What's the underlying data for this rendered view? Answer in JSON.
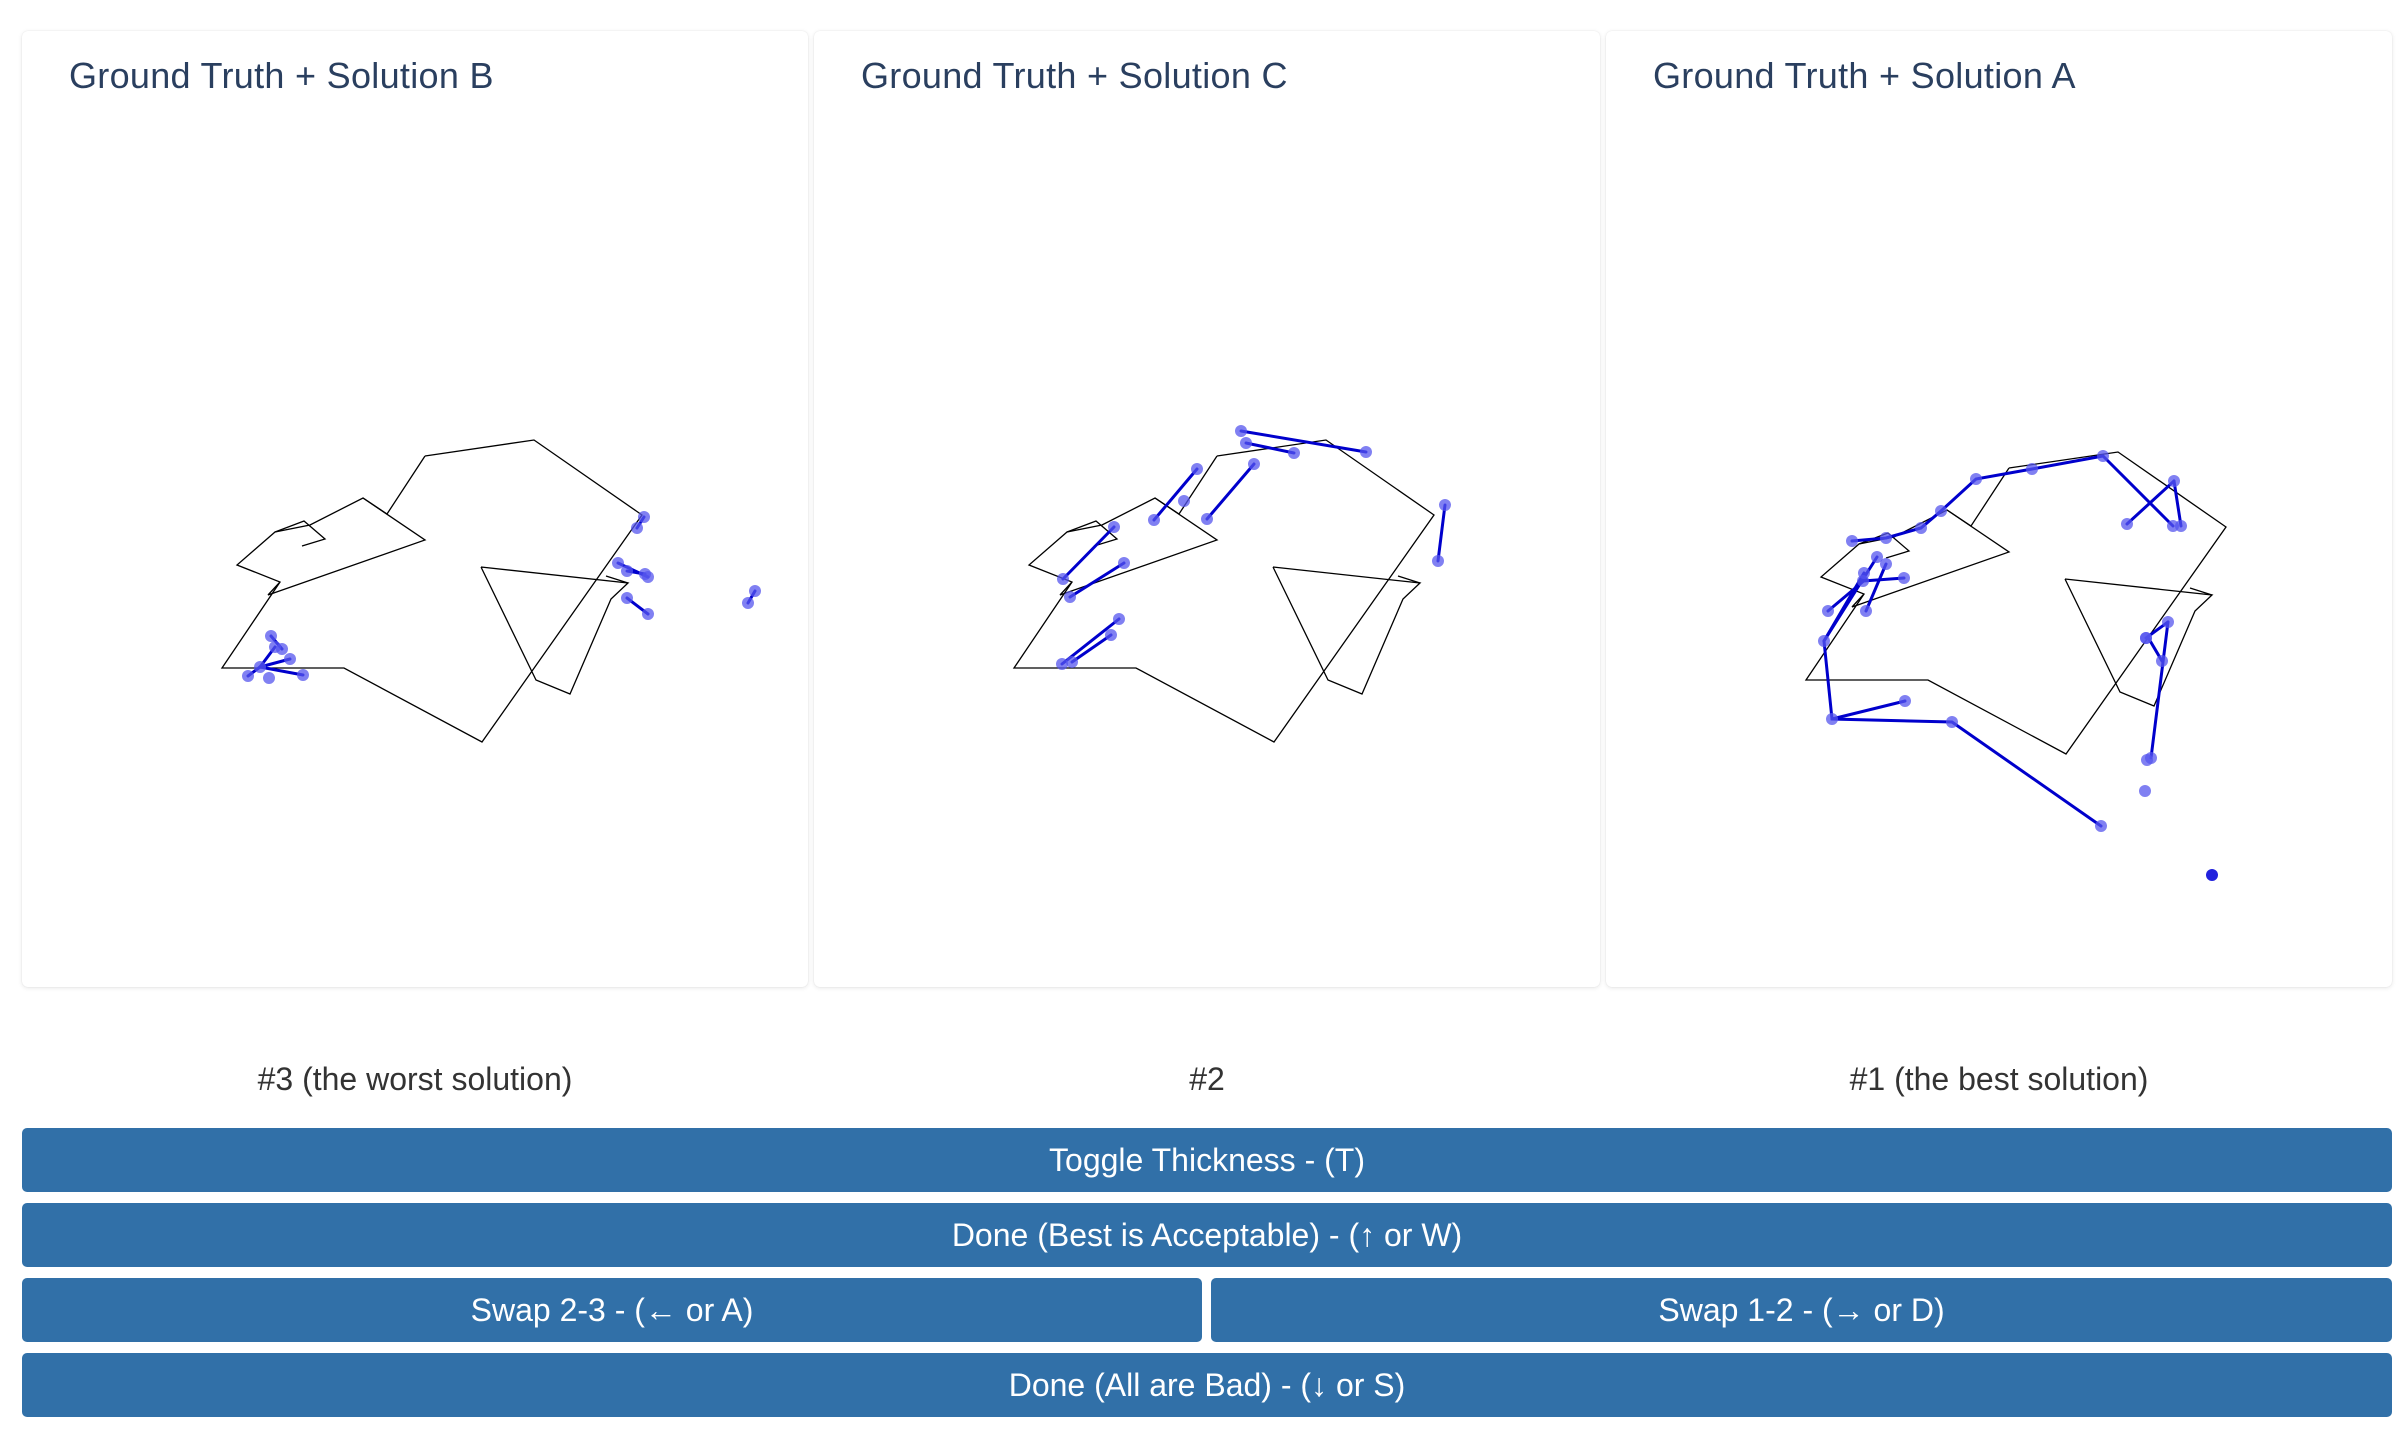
{
  "panels": [
    {
      "title": "Ground Truth + Solution B",
      "rank_label": "#3 (the worst solution)"
    },
    {
      "title": "Ground Truth + Solution C",
      "rank_label": "#2"
    },
    {
      "title": "Ground Truth + Solution A",
      "rank_label": "#1 (the best solution)"
    }
  ],
  "buttons": {
    "toggle_thickness": "Toggle Thickness - (T)",
    "done_best": "Done (Best is Acceptable) - (↑ or W)",
    "swap_23": "Swap 2-3 - (← or A)",
    "swap_12": "Swap 1-2 - (→ or D)",
    "done_all_bad": "Done (All are Bad) - (↓ or S)"
  },
  "colors": {
    "button_bg": "#3170a8",
    "ground_truth_line": "#000000",
    "solution_line": "#0000cc",
    "solution_point": "#5555ee",
    "title_text": "#2a3f5f"
  }
}
